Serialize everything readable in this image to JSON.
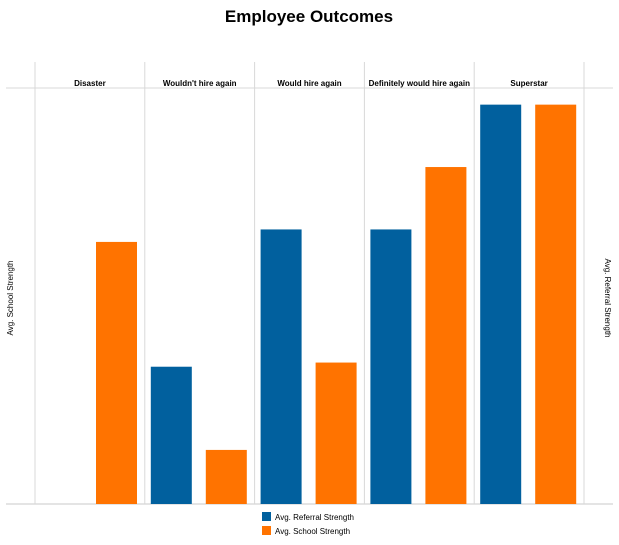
{
  "chart_data": {
    "type": "bar",
    "title": "Employee Outcomes",
    "categories": [
      "Disaster",
      "Wouldn't hire again",
      "Would hire again",
      "Definitely would hire again",
      "Superstar"
    ],
    "series": [
      {
        "name": "Avg. Referral Strength",
        "color": "#01609e",
        "values": [
          0,
          1.65,
          3.3,
          3.3,
          4.8
        ]
      },
      {
        "name": "Avg. School Strength",
        "color": "#ff7300",
        "values": [
          3.15,
          0.65,
          1.7,
          4.05,
          4.8
        ]
      }
    ],
    "ylabel_left": "Avg. School Strength",
    "ylabel_right": "Avg. Referral Strength",
    "ylim": [
      0,
      5
    ],
    "grid": false,
    "legend": "bottom"
  }
}
